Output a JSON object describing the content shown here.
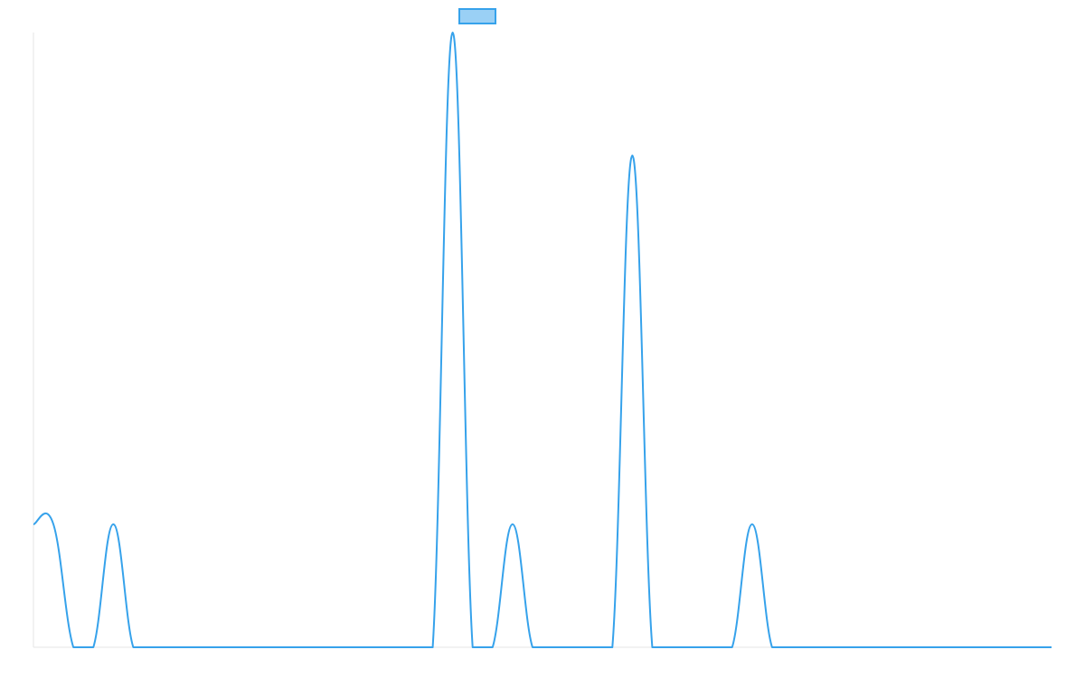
{
  "chart_data": {
    "type": "line",
    "title": "",
    "xlabel": "",
    "ylabel": "",
    "x": [
      0,
      1,
      2,
      3,
      4,
      5,
      6,
      7,
      8,
      9,
      10,
      11,
      12,
      13,
      14,
      15,
      16,
      17,
      18,
      19,
      20,
      21,
      22,
      23,
      24,
      25,
      26,
      27,
      28,
      29,
      30,
      31,
      32,
      33,
      34,
      35,
      36,
      37,
      38,
      39,
      40,
      41,
      42,
      43,
      44,
      45,
      46,
      47,
      48,
      49,
      50,
      51
    ],
    "xlim": [
      0,
      51
    ],
    "ylim": [
      0,
      5
    ],
    "grid": false,
    "legend": {
      "position": "top",
      "visible": true
    },
    "series": [
      {
        "name": "",
        "color": "#36a2eb",
        "fill": "#9ad0f5",
        "values": [
          1,
          1,
          0,
          0,
          1,
          0,
          0,
          0,
          0,
          0,
          0,
          0,
          0,
          0,
          0,
          0,
          0,
          0,
          0,
          0,
          0,
          5,
          0,
          0,
          1,
          0,
          0,
          0,
          0,
          0,
          4,
          0,
          0,
          0,
          0,
          0,
          1,
          0,
          0,
          0,
          0,
          0,
          0,
          0,
          0,
          0,
          0,
          0,
          0,
          0,
          0,
          0
        ]
      }
    ]
  }
}
